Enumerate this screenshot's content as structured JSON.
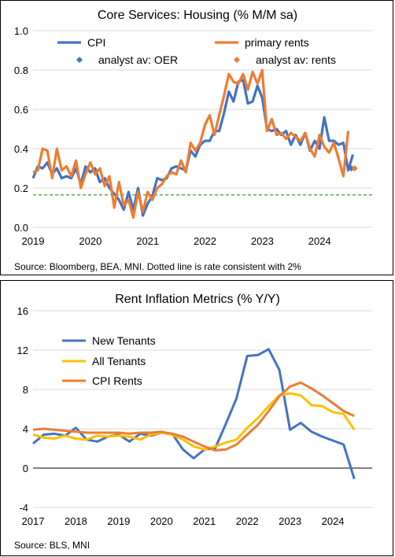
{
  "chart_data": [
    {
      "type": "line",
      "title": "Core Services: Housing (% M/M sa)",
      "source": "Source: Bloomberg, BEA, MNI. Dotted line is rate consistent with 2%",
      "xlim": [
        2019.0,
        2024.917
      ],
      "ylim": [
        0.0,
        1.0
      ],
      "ytick_labels": [
        "0.0",
        "0.2",
        "0.4",
        "0.6",
        "0.8",
        "1.0"
      ],
      "xtick_labels": [
        "2019",
        "2020",
        "2021",
        "2022",
        "2023",
        "2024"
      ],
      "grid": "horizontal",
      "reference_line": {
        "y": 0.165,
        "color": "#2ca02c",
        "style": "dashed"
      },
      "colors": {
        "cpi": "#4472C4",
        "rents": "#ED7D31"
      },
      "series": [
        {
          "name": "CPI",
          "x_start": 2019.0,
          "x_step": 0.0833,
          "values": [
            0.25,
            0.31,
            0.3,
            0.33,
            0.27,
            0.3,
            0.25,
            0.26,
            0.25,
            0.3,
            0.22,
            0.31,
            0.28,
            0.3,
            0.23,
            0.25,
            0.2,
            0.17,
            0.14,
            0.09,
            0.18,
            0.09,
            0.2,
            0.06,
            0.12,
            0.16,
            0.25,
            0.24,
            0.25,
            0.3,
            0.31,
            0.3,
            0.29,
            0.39,
            0.36,
            0.42,
            0.44,
            0.44,
            0.49,
            0.49,
            0.58,
            0.69,
            0.64,
            0.74,
            0.75,
            0.63,
            0.64,
            0.72,
            0.66,
            0.5,
            0.49,
            0.5,
            0.47,
            0.49,
            0.42,
            0.47,
            0.42,
            0.48,
            0.39,
            0.44,
            0.4,
            0.56,
            0.44,
            0.44,
            0.42,
            0.43,
            0.29,
            0.37
          ]
        },
        {
          "name": "primary rents",
          "x_start": 2019.0,
          "x_step": 0.0833,
          "values": [
            0.28,
            0.29,
            0.4,
            0.39,
            0.25,
            0.4,
            0.29,
            0.31,
            0.26,
            0.34,
            0.2,
            0.27,
            0.33,
            0.27,
            0.3,
            0.21,
            0.26,
            0.1,
            0.23,
            0.11,
            0.14,
            0.05,
            0.18,
            0.08,
            0.18,
            0.14,
            0.2,
            0.22,
            0.26,
            0.28,
            0.27,
            0.34,
            0.28,
            0.43,
            0.39,
            0.43,
            0.52,
            0.57,
            0.47,
            0.57,
            0.67,
            0.78,
            0.74,
            0.73,
            0.78,
            0.7,
            0.79,
            0.73,
            0.8,
            0.49,
            0.55,
            0.47,
            0.48,
            0.45,
            0.48,
            0.46,
            0.44,
            0.48,
            0.4,
            0.36,
            0.47,
            0.41,
            0.38,
            0.43,
            0.35,
            0.26,
            0.49
          ]
        },
        {
          "name": "analyst av: OER",
          "x": [
            2024.583
          ],
          "values": [
            0.3
          ],
          "marker": "diamond"
        },
        {
          "name": "analyst av: rents",
          "x": [
            2024.583
          ],
          "values": [
            0.3
          ],
          "marker": "diamond"
        }
      ]
    },
    {
      "type": "line",
      "title": "Rent Inflation Metrics (% Y/Y)",
      "source": "Source: BLS, MNI",
      "xlim": [
        2017.0,
        2024.917
      ],
      "ylim": [
        -4,
        16
      ],
      "ytick_labels": [
        "-4",
        "0",
        "4",
        "8",
        "12",
        "16"
      ],
      "xtick_labels": [
        "2017",
        "2018",
        "2019",
        "2020",
        "2021",
        "2022",
        "2023",
        "2024"
      ],
      "grid": "horizontal",
      "colors": {
        "new": "#4472C4",
        "all": "#FFC000",
        "cpi": "#ED7D31"
      },
      "series": [
        {
          "name": "New Tenants",
          "x": [
            2017.0,
            2017.25,
            2017.5,
            2017.75,
            2018.0,
            2018.25,
            2018.5,
            2018.75,
            2019.0,
            2019.25,
            2019.5,
            2019.75,
            2020.0,
            2020.25,
            2020.5,
            2020.75,
            2021.0,
            2021.25,
            2021.5,
            2021.75,
            2022.0,
            2022.25,
            2022.5,
            2022.75,
            2023.0,
            2023.25,
            2023.5,
            2023.75,
            2024.0,
            2024.25,
            2024.5
          ],
          "values": [
            2.5,
            3.4,
            3.5,
            3.3,
            4.1,
            2.9,
            2.7,
            3.2,
            3.4,
            2.7,
            3.5,
            3.3,
            3.6,
            3.5,
            1.9,
            1.0,
            1.9,
            2.0,
            4.5,
            7.1,
            11.4,
            11.5,
            12.1,
            10.0,
            3.9,
            4.6,
            3.7,
            3.2,
            2.8,
            2.4,
            -1.1
          ]
        },
        {
          "name": "All Tenants",
          "x": [
            2017.0,
            2017.25,
            2017.5,
            2017.75,
            2018.0,
            2018.25,
            2018.5,
            2018.75,
            2019.0,
            2019.25,
            2019.5,
            2019.75,
            2020.0,
            2020.25,
            2020.5,
            2020.75,
            2021.0,
            2021.25,
            2021.5,
            2021.75,
            2022.0,
            2022.25,
            2022.5,
            2022.75,
            2023.0,
            2023.25,
            2023.5,
            2023.75,
            2024.0,
            2024.25,
            2024.5
          ],
          "values": [
            3.4,
            3.1,
            3.0,
            3.3,
            3.0,
            2.9,
            3.3,
            3.2,
            3.3,
            3.2,
            2.9,
            3.4,
            3.6,
            3.4,
            2.9,
            2.2,
            1.9,
            2.2,
            2.6,
            2.9,
            4.1,
            5.1,
            6.3,
            7.4,
            7.6,
            7.4,
            6.4,
            6.3,
            5.7,
            5.5,
            3.9
          ]
        },
        {
          "name": "CPI Rents",
          "x": [
            2017.0,
            2017.25,
            2017.5,
            2017.75,
            2018.0,
            2018.25,
            2018.5,
            2018.75,
            2019.0,
            2019.25,
            2019.5,
            2019.75,
            2020.0,
            2020.25,
            2020.5,
            2020.75,
            2021.0,
            2021.25,
            2021.5,
            2021.75,
            2022.0,
            2022.25,
            2022.5,
            2022.75,
            2023.0,
            2023.25,
            2023.5,
            2023.75,
            2024.0,
            2024.25,
            2024.5
          ],
          "values": [
            3.9,
            4.0,
            3.9,
            3.8,
            3.7,
            3.6,
            3.6,
            3.6,
            3.6,
            3.5,
            3.6,
            3.6,
            3.7,
            3.5,
            3.2,
            2.7,
            2.2,
            1.8,
            1.9,
            2.4,
            3.4,
            4.4,
            5.8,
            7.3,
            8.3,
            8.7,
            8.1,
            7.4,
            6.6,
            5.8,
            5.3
          ]
        }
      ]
    }
  ]
}
